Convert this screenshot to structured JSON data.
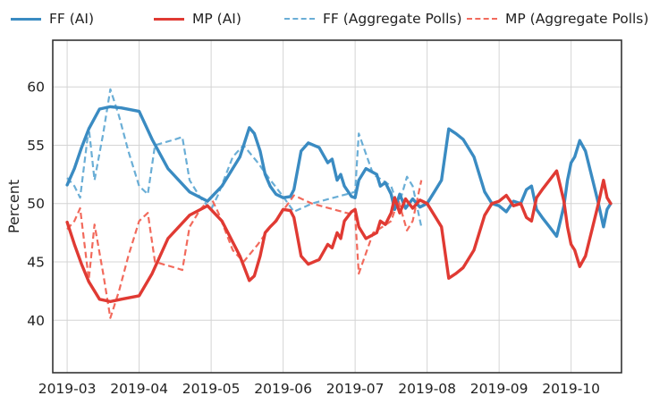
{
  "chart_data": {
    "type": "line",
    "title": "",
    "xlabel": "",
    "ylabel": "Percent",
    "ylim": [
      35.5,
      64
    ],
    "xlim": [
      -0.2,
      7.7
    ],
    "grid": true,
    "legend_position": "top",
    "x_tick_labels": [
      "2019-03",
      "2019-04",
      "2019-05",
      "2019-06",
      "2019-07",
      "2019-08",
      "2019-09",
      "2019-10"
    ],
    "x_tick_values": [
      0,
      1,
      2,
      3,
      4,
      5,
      6,
      7
    ],
    "y_ticks": [
      40,
      45,
      50,
      55,
      60
    ],
    "x_unit": "months since 2019-03",
    "series": [
      {
        "name": "FF (AI)",
        "color": "#3a8bc2",
        "style": "solid",
        "points": [
          [
            0.0,
            51.6
          ],
          [
            0.1,
            53.0
          ],
          [
            0.2,
            54.8
          ],
          [
            0.3,
            56.4
          ],
          [
            0.45,
            58.1
          ],
          [
            0.6,
            58.3
          ],
          [
            0.75,
            58.2
          ],
          [
            1.0,
            57.9
          ],
          [
            1.18,
            55.5
          ],
          [
            1.4,
            53.0
          ],
          [
            1.7,
            51.0
          ],
          [
            1.95,
            50.2
          ],
          [
            2.15,
            51.5
          ],
          [
            2.4,
            54.0
          ],
          [
            2.53,
            56.5
          ],
          [
            2.6,
            56.0
          ],
          [
            2.68,
            54.5
          ],
          [
            2.75,
            52.5
          ],
          [
            2.82,
            51.5
          ],
          [
            2.9,
            50.8
          ],
          [
            3.0,
            50.5
          ],
          [
            3.1,
            50.6
          ],
          [
            3.15,
            51.2
          ],
          [
            3.25,
            54.5
          ],
          [
            3.35,
            55.2
          ],
          [
            3.5,
            54.8
          ],
          [
            3.62,
            53.5
          ],
          [
            3.68,
            53.8
          ],
          [
            3.75,
            52.0
          ],
          [
            3.8,
            52.5
          ],
          [
            3.85,
            51.5
          ],
          [
            3.95,
            50.6
          ],
          [
            4.0,
            50.5
          ],
          [
            4.05,
            52.0
          ],
          [
            4.15,
            53.0
          ],
          [
            4.3,
            52.5
          ],
          [
            4.35,
            51.5
          ],
          [
            4.42,
            51.8
          ],
          [
            4.5,
            50.8
          ],
          [
            4.55,
            49.5
          ],
          [
            4.62,
            50.8
          ],
          [
            4.7,
            49.6
          ],
          [
            4.8,
            50.4
          ],
          [
            4.9,
            49.7
          ],
          [
            5.0,
            50.0
          ],
          [
            5.1,
            51.0
          ],
          [
            5.2,
            52.0
          ],
          [
            5.3,
            56.4
          ],
          [
            5.4,
            56.0
          ],
          [
            5.5,
            55.5
          ],
          [
            5.65,
            54.0
          ],
          [
            5.8,
            51.0
          ],
          [
            5.9,
            50.0
          ],
          [
            6.0,
            49.8
          ],
          [
            6.1,
            49.3
          ],
          [
            6.2,
            50.2
          ],
          [
            6.3,
            50.0
          ],
          [
            6.38,
            51.2
          ],
          [
            6.45,
            51.5
          ],
          [
            6.52,
            49.5
          ],
          [
            6.6,
            48.8
          ],
          [
            6.7,
            48.0
          ],
          [
            6.8,
            47.2
          ],
          [
            6.85,
            48.5
          ],
          [
            6.9,
            49.8
          ],
          [
            6.95,
            52.0
          ],
          [
            7.0,
            53.5
          ],
          [
            7.05,
            54.0
          ],
          [
            7.12,
            55.4
          ],
          [
            7.2,
            54.5
          ],
          [
            7.3,
            52.0
          ],
          [
            7.38,
            50.0
          ],
          [
            7.45,
            48.0
          ],
          [
            7.5,
            49.5
          ],
          [
            7.55,
            50.0
          ]
        ]
      },
      {
        "name": "MP (AI)",
        "color": "#e03a33",
        "style": "solid",
        "points": [
          [
            0.0,
            48.4
          ],
          [
            0.1,
            46.5
          ],
          [
            0.2,
            44.8
          ],
          [
            0.3,
            43.3
          ],
          [
            0.45,
            41.8
          ],
          [
            0.6,
            41.6
          ],
          [
            0.75,
            41.8
          ],
          [
            1.0,
            42.1
          ],
          [
            1.18,
            44.0
          ],
          [
            1.4,
            47.0
          ],
          [
            1.7,
            49.0
          ],
          [
            1.95,
            49.8
          ],
          [
            2.15,
            48.5
          ],
          [
            2.4,
            45.5
          ],
          [
            2.53,
            43.4
          ],
          [
            2.6,
            43.8
          ],
          [
            2.68,
            45.5
          ],
          [
            2.75,
            47.5
          ],
          [
            2.82,
            48.0
          ],
          [
            2.9,
            48.5
          ],
          [
            3.0,
            49.5
          ],
          [
            3.1,
            49.4
          ],
          [
            3.15,
            48.8
          ],
          [
            3.25,
            45.5
          ],
          [
            3.35,
            44.8
          ],
          [
            3.5,
            45.2
          ],
          [
            3.62,
            46.5
          ],
          [
            3.68,
            46.2
          ],
          [
            3.75,
            47.5
          ],
          [
            3.8,
            47.0
          ],
          [
            3.85,
            48.5
          ],
          [
            3.95,
            49.3
          ],
          [
            4.0,
            49.5
          ],
          [
            4.05,
            48.0
          ],
          [
            4.15,
            47.0
          ],
          [
            4.3,
            47.5
          ],
          [
            4.35,
            48.5
          ],
          [
            4.42,
            48.2
          ],
          [
            4.5,
            49.2
          ],
          [
            4.55,
            50.5
          ],
          [
            4.62,
            49.2
          ],
          [
            4.7,
            50.4
          ],
          [
            4.8,
            49.6
          ],
          [
            4.9,
            50.3
          ],
          [
            5.0,
            50.0
          ],
          [
            5.1,
            49.0
          ],
          [
            5.2,
            48.0
          ],
          [
            5.3,
            43.6
          ],
          [
            5.4,
            44.0
          ],
          [
            5.5,
            44.5
          ],
          [
            5.65,
            46.0
          ],
          [
            5.8,
            49.0
          ],
          [
            5.9,
            50.0
          ],
          [
            6.0,
            50.2
          ],
          [
            6.1,
            50.7
          ],
          [
            6.2,
            49.8
          ],
          [
            6.3,
            50.0
          ],
          [
            6.38,
            48.8
          ],
          [
            6.45,
            48.5
          ],
          [
            6.52,
            50.5
          ],
          [
            6.6,
            51.2
          ],
          [
            6.7,
            52.0
          ],
          [
            6.8,
            52.8
          ],
          [
            6.85,
            51.5
          ],
          [
            6.9,
            50.2
          ],
          [
            6.95,
            48.0
          ],
          [
            7.0,
            46.5
          ],
          [
            7.05,
            46.0
          ],
          [
            7.12,
            44.6
          ],
          [
            7.2,
            45.5
          ],
          [
            7.3,
            48.0
          ],
          [
            7.38,
            50.0
          ],
          [
            7.45,
            52.0
          ],
          [
            7.5,
            50.5
          ],
          [
            7.55,
            50.0
          ]
        ]
      },
      {
        "name": "FF (Aggregate Polls)",
        "color": "#6aaed6",
        "style": "dashed",
        "points": [
          [
            0.0,
            52.2
          ],
          [
            0.1,
            51.5
          ],
          [
            0.18,
            50.5
          ],
          [
            0.3,
            56.5
          ],
          [
            0.38,
            52.0
          ],
          [
            0.5,
            56.0
          ],
          [
            0.6,
            59.8
          ],
          [
            0.72,
            57.5
          ],
          [
            0.85,
            54.5
          ],
          [
            1.0,
            51.5
          ],
          [
            1.12,
            50.8
          ],
          [
            1.22,
            55.0
          ],
          [
            1.5,
            55.5
          ],
          [
            1.6,
            55.7
          ],
          [
            1.7,
            52.0
          ],
          [
            1.85,
            50.5
          ],
          [
            2.0,
            49.5
          ],
          [
            2.1,
            50.8
          ],
          [
            2.3,
            54.0
          ],
          [
            2.45,
            55.0
          ],
          [
            2.65,
            53.5
          ],
          [
            2.8,
            52.2
          ],
          [
            3.0,
            50.6
          ],
          [
            3.15,
            49.3
          ],
          [
            3.4,
            50.0
          ],
          [
            3.7,
            50.5
          ],
          [
            4.0,
            51.0
          ],
          [
            4.05,
            56.0
          ],
          [
            4.25,
            52.5
          ],
          [
            4.38,
            52.0
          ],
          [
            4.5,
            51.5
          ],
          [
            4.6,
            49.7
          ],
          [
            4.72,
            52.3
          ],
          [
            4.8,
            51.5
          ],
          [
            4.92,
            48.0
          ]
        ]
      },
      {
        "name": "MP (Aggregate Polls)",
        "color": "#f26a5c",
        "style": "dashed",
        "points": [
          [
            0.0,
            47.8
          ],
          [
            0.1,
            48.5
          ],
          [
            0.18,
            49.6
          ],
          [
            0.3,
            43.5
          ],
          [
            0.38,
            48.2
          ],
          [
            0.5,
            44.0
          ],
          [
            0.6,
            40.2
          ],
          [
            0.72,
            42.5
          ],
          [
            0.85,
            45.5
          ],
          [
            1.0,
            48.5
          ],
          [
            1.12,
            49.2
          ],
          [
            1.22,
            45.0
          ],
          [
            1.5,
            44.5
          ],
          [
            1.6,
            44.3
          ],
          [
            1.7,
            48.0
          ],
          [
            1.85,
            49.5
          ],
          [
            2.0,
            50.5
          ],
          [
            2.1,
            49.2
          ],
          [
            2.3,
            46.0
          ],
          [
            2.45,
            45.0
          ],
          [
            2.65,
            46.5
          ],
          [
            2.8,
            47.8
          ],
          [
            3.0,
            49.4
          ],
          [
            3.15,
            50.7
          ],
          [
            3.4,
            50.0
          ],
          [
            3.7,
            49.5
          ],
          [
            4.0,
            49.0
          ],
          [
            4.05,
            44.0
          ],
          [
            4.25,
            47.5
          ],
          [
            4.38,
            48.0
          ],
          [
            4.5,
            48.5
          ],
          [
            4.6,
            50.3
          ],
          [
            4.72,
            47.7
          ],
          [
            4.8,
            48.5
          ],
          [
            4.92,
            52.0
          ]
        ]
      }
    ]
  }
}
